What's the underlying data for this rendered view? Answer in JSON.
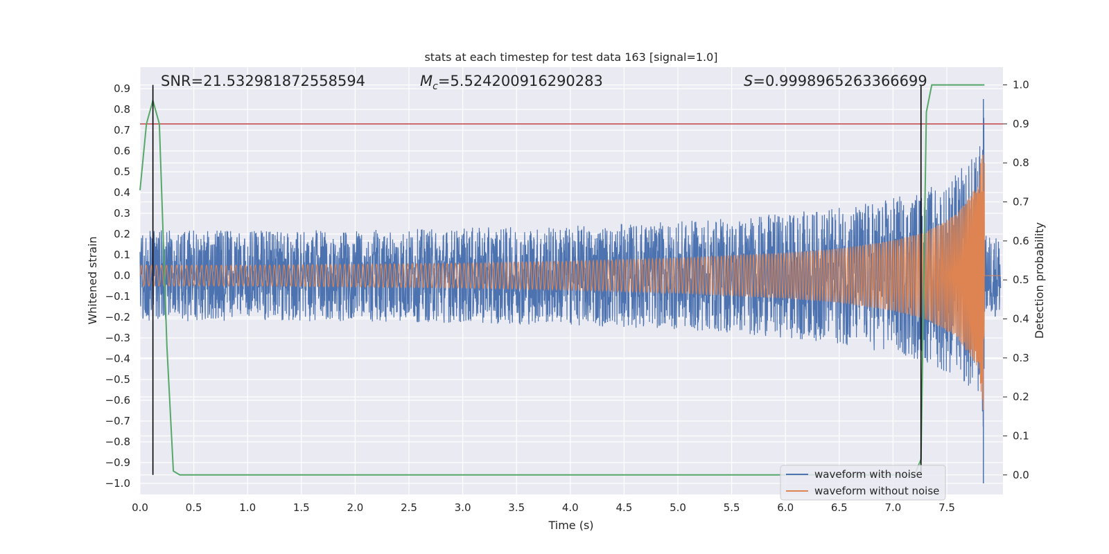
{
  "chart_data": {
    "type": "line",
    "title": "stats at each timestep for test data 163 [signal=1.0]",
    "xlabel": "Time (s)",
    "ylabel_left": "Whitened strain",
    "ylabel_right": "Detection probability",
    "xlim": [
      0.0,
      8.0
    ],
    "ylim_left": [
      -1.08,
      0.95
    ],
    "ylim_right": [
      -0.05,
      1.05
    ],
    "x_ticks": [
      "0.0",
      "0.5",
      "1.0",
      "1.5",
      "2.0",
      "2.5",
      "3.0",
      "3.5",
      "4.0",
      "4.5",
      "5.0",
      "5.5",
      "6.0",
      "6.5",
      "7.0",
      "7.5"
    ],
    "y_left_ticks": [
      "0.9",
      "0.8",
      "0.7",
      "0.6",
      "0.5",
      "0.4",
      "0.3",
      "0.2",
      "0.1",
      "0.0",
      "−0.1",
      "−0.2",
      "−0.3",
      "−0.4",
      "−0.5",
      "−0.6",
      "−0.7",
      "−0.8",
      "−0.9",
      "−1.0"
    ],
    "y_right_ticks": [
      "1.0",
      "0.9",
      "0.8",
      "0.7",
      "0.6",
      "0.5",
      "0.4",
      "0.3",
      "0.2",
      "0.1",
      "0.0"
    ],
    "grid": true,
    "legend_position": "bottom-right",
    "annotations": {
      "snr": "SNR=21.532981872558594",
      "mc_symbol": "M",
      "mc_sub": "c",
      "mc_value": "=5.524200916290283",
      "s_symbol": "S",
      "s_value": "=0.9998965263366699"
    },
    "threshold": {
      "y_right": 0.9,
      "color": "#c44e52"
    },
    "vlines": [
      0.12,
      7.26
    ],
    "series": [
      {
        "name": "waveform with noise",
        "color": "#4c72b0",
        "envelope": {
          "t": [
            0.0,
            1.0,
            2.0,
            3.0,
            4.0,
            5.0,
            6.0,
            6.5,
            7.0,
            7.3,
            7.6,
            7.8,
            7.85
          ],
          "amp": [
            0.22,
            0.22,
            0.22,
            0.23,
            0.24,
            0.26,
            0.3,
            0.33,
            0.38,
            0.42,
            0.5,
            0.62,
            0.8
          ]
        }
      },
      {
        "name": "waveform without noise",
        "color": "#dd8452",
        "envelope": {
          "t": [
            0.0,
            1.0,
            2.0,
            3.0,
            4.0,
            5.0,
            6.0,
            6.5,
            7.0,
            7.3,
            7.6,
            7.8,
            7.85
          ],
          "amp": [
            0.05,
            0.05,
            0.055,
            0.06,
            0.07,
            0.085,
            0.11,
            0.13,
            0.17,
            0.21,
            0.3,
            0.45,
            0.75
          ]
        },
        "merger_time": 7.85
      },
      {
        "name": "detection probability",
        "color": "#55a868",
        "axis": "right",
        "x": [
          0.0,
          0.06,
          0.12,
          0.18,
          0.25,
          0.31,
          0.37,
          7.2,
          7.26,
          7.31,
          7.36,
          7.85
        ],
        "y": [
          0.73,
          0.9,
          0.96,
          0.9,
          0.33,
          0.01,
          0.0,
          0.0,
          0.04,
          0.93,
          1.0,
          1.0
        ]
      }
    ]
  }
}
